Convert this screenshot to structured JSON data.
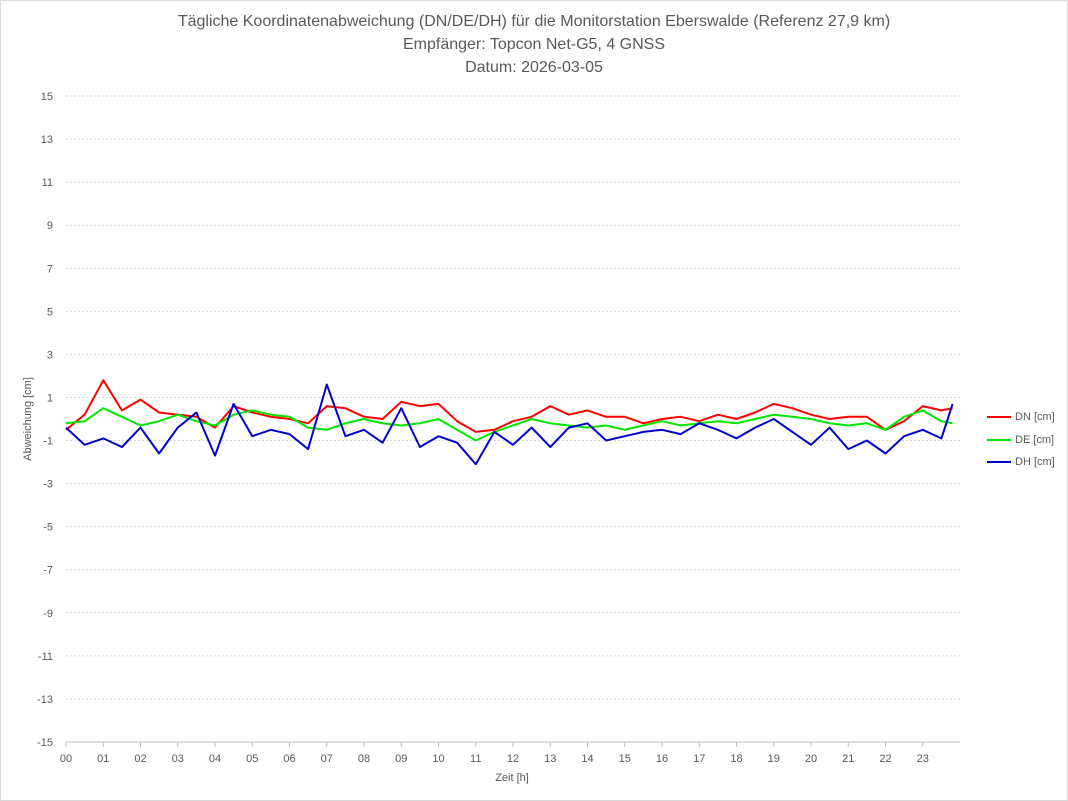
{
  "chart_data": {
    "type": "line",
    "title_lines": [
      "Tägliche Koordinatenabweichung (DN/DE/DH) für die Monitorstation Eberswalde (Referenz 27,9 km)",
      "Empfänger: Topcon Net-G5, 4 GNSS",
      "Datum: 2026-03-05"
    ],
    "xlabel": "Zeit [h]",
    "ylabel": "Abweichung [cm]",
    "xlim": [
      0,
      24
    ],
    "ylim": [
      -15,
      15
    ],
    "grid": true,
    "legend_position": "right",
    "x_ticks": [
      "00",
      "01",
      "02",
      "03",
      "04",
      "05",
      "06",
      "07",
      "08",
      "09",
      "10",
      "11",
      "12",
      "13",
      "14",
      "15",
      "16",
      "17",
      "18",
      "19",
      "20",
      "21",
      "22",
      "23"
    ],
    "y_ticks": [
      15,
      13,
      11,
      9,
      7,
      5,
      3,
      1,
      -1,
      -3,
      -5,
      -7,
      -9,
      -11,
      -13,
      -15
    ],
    "x": [
      0.0,
      0.5,
      1.0,
      1.5,
      2.0,
      2.5,
      3.0,
      3.5,
      4.0,
      4.5,
      5.0,
      5.5,
      6.0,
      6.5,
      7.0,
      7.5,
      8.0,
      8.5,
      9.0,
      9.5,
      10.0,
      10.5,
      11.0,
      11.5,
      12.0,
      12.5,
      13.0,
      13.5,
      14.0,
      14.5,
      15.0,
      15.5,
      16.0,
      16.5,
      17.0,
      17.5,
      18.0,
      18.5,
      19.0,
      19.5,
      20.0,
      20.5,
      21.0,
      21.5,
      22.0,
      22.5,
      23.0,
      23.5,
      23.8
    ],
    "series": [
      {
        "name": "DN [cm]",
        "color": "#ff0000",
        "values": [
          -0.5,
          0.2,
          1.8,
          0.4,
          0.9,
          0.3,
          0.2,
          0.1,
          -0.4,
          0.6,
          0.3,
          0.1,
          0.0,
          -0.2,
          0.6,
          0.5,
          0.1,
          0.0,
          0.8,
          0.6,
          0.7,
          -0.1,
          -0.6,
          -0.5,
          -0.1,
          0.1,
          0.6,
          0.2,
          0.4,
          0.1,
          0.1,
          -0.2,
          0.0,
          0.1,
          -0.1,
          0.2,
          0.0,
          0.3,
          0.7,
          0.5,
          0.2,
          0.0,
          0.1,
          0.1,
          -0.5,
          -0.1,
          0.6,
          0.4,
          0.5
        ]
      },
      {
        "name": "DE [cm]",
        "color": "#00e600",
        "values": [
          -0.2,
          -0.1,
          0.5,
          0.1,
          -0.3,
          -0.1,
          0.2,
          -0.1,
          -0.3,
          0.2,
          0.4,
          0.2,
          0.1,
          -0.4,
          -0.5,
          -0.2,
          0.0,
          -0.2,
          -0.3,
          -0.2,
          0.0,
          -0.5,
          -1.0,
          -0.6,
          -0.3,
          0.0,
          -0.2,
          -0.3,
          -0.4,
          -0.3,
          -0.5,
          -0.3,
          -0.1,
          -0.3,
          -0.2,
          -0.1,
          -0.2,
          0.0,
          0.2,
          0.1,
          0.0,
          -0.2,
          -0.3,
          -0.2,
          -0.5,
          0.1,
          0.4,
          -0.1,
          -0.2
        ]
      },
      {
        "name": "DH [cm]",
        "color": "#0000cc",
        "values": [
          -0.4,
          -1.2,
          -0.9,
          -1.3,
          -0.4,
          -1.6,
          -0.4,
          0.3,
          -1.7,
          0.7,
          -0.8,
          -0.5,
          -0.7,
          -1.4,
          1.6,
          -0.8,
          -0.5,
          -1.1,
          0.5,
          -1.3,
          -0.8,
          -1.1,
          -2.1,
          -0.6,
          -1.2,
          -0.4,
          -1.3,
          -0.4,
          -0.2,
          -1.0,
          -0.8,
          -0.6,
          -0.5,
          -0.7,
          -0.2,
          -0.5,
          -0.9,
          -0.4,
          0.0,
          -0.6,
          -1.2,
          -0.4,
          -1.4,
          -1.0,
          -1.6,
          -0.8,
          -0.5,
          -0.9,
          0.7
        ]
      }
    ]
  }
}
